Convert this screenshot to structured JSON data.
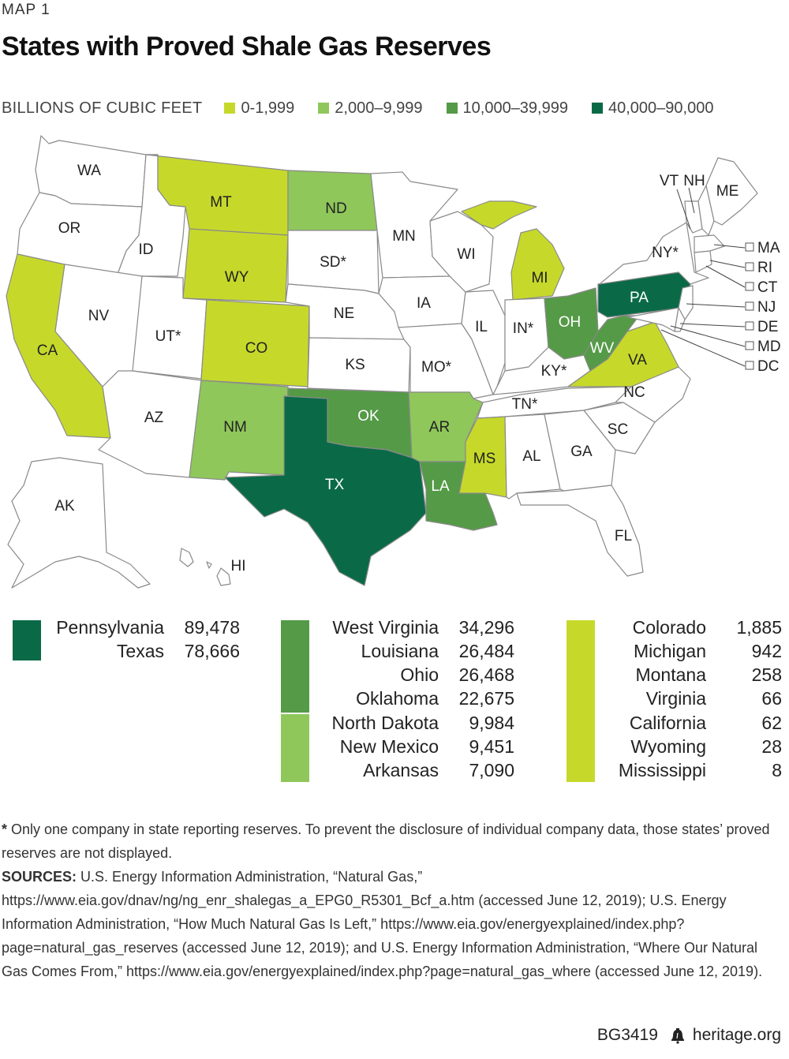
{
  "kicker": "MAP 1",
  "title": "States with Proved Shale Gas Reserves",
  "legend": {
    "title": "BILLIONS OF CUBIC FEET",
    "items": [
      {
        "label": "0-1,999",
        "color": "#c6d92b"
      },
      {
        "label": "2,000–9,999",
        "color": "#8fc75b"
      },
      {
        "label": "10,000–39,999",
        "color": "#559a47"
      },
      {
        "label": "40,000–90,000",
        "color": "#0a6a47"
      }
    ]
  },
  "map_labels": {
    "WA": "WA",
    "OR": "OR",
    "CA": "CA",
    "ID": "ID",
    "NV": "NV",
    "MT": "MT",
    "WY": "WY",
    "UT": "UT*",
    "AZ": "AZ",
    "CO": "CO",
    "NM": "NM",
    "ND": "ND",
    "SD": "SD*",
    "NE": "NE",
    "KS": "KS",
    "OK": "OK",
    "TX": "TX",
    "MN": "MN",
    "IA": "IA",
    "MO": "MO*",
    "AR": "AR",
    "LA": "LA",
    "WI": "WI",
    "IL": "IL",
    "MI": "MI",
    "IN": "IN*",
    "OH": "OH",
    "KY": "KY*",
    "TN": "TN*",
    "MS": "MS",
    "AL": "AL",
    "GA": "GA",
    "FL": "FL",
    "SC": "SC",
    "NC": "NC",
    "VA": "VA",
    "WV": "WV",
    "PA": "PA",
    "NY": "NY*",
    "VT": "VT",
    "NH": "NH",
    "ME": "ME",
    "AK": "AK",
    "HI": "HI",
    "MA": "MA",
    "RI": "RI",
    "CT": "CT",
    "NJ": "NJ",
    "DE": "DE",
    "MD": "MD",
    "DC": "DC"
  },
  "tables": {
    "tier4": [
      {
        "state": "Pennsylvania",
        "value": "89,478"
      },
      {
        "state": "Texas",
        "value": "78,666"
      }
    ],
    "tier3": [
      {
        "state": "West Virginia",
        "value": "34,296"
      },
      {
        "state": "Louisiana",
        "value": "26,484"
      },
      {
        "state": "Ohio",
        "value": "26,468"
      },
      {
        "state": "Oklahoma",
        "value": "22,675"
      }
    ],
    "tier2": [
      {
        "state": "North Dakota",
        "value": "9,984"
      },
      {
        "state": "New Mexico",
        "value": "9,451"
      },
      {
        "state": "Arkansas",
        "value": "7,090"
      }
    ],
    "tier1": [
      {
        "state": "Colorado",
        "value": "1,885"
      },
      {
        "state": "Michigan",
        "value": "942"
      },
      {
        "state": "Montana",
        "value": "258"
      },
      {
        "state": "Virginia",
        "value": "66"
      },
      {
        "state": "California",
        "value": "62"
      },
      {
        "state": "Wyoming",
        "value": "28"
      },
      {
        "state": "Mississippi",
        "value": "8"
      }
    ]
  },
  "notes": {
    "asterisk_mark": "*",
    "asterisk_text": " Only one company in state reporting reserves. To prevent the disclosure of individual company data, those states’ proved reserves are not displayed.",
    "sources_label": "SOURCES:",
    "sources_text": " U.S. Energy Information Administration, “Natural Gas,” https://www.eia.gov/dnav/ng/ng_enr_shalegas_a_EPG0_R5301_Bcf_a.htm (accessed June 12, 2019); U.S. Energy Information Administration, “How Much Natural Gas Is Left,” https://www.eia.gov/energyexplained/index.php?page=natural_gas_reserves (accessed June 12, 2019); and U.S. Energy Information Administration, “Where Our Natural Gas Comes From,” https://www.eia.gov/energyexplained/index.php?page=natural_gas_where (accessed June 12, 2019)."
  },
  "footer": {
    "code": "BG3419",
    "site": "heritage.org"
  }
}
